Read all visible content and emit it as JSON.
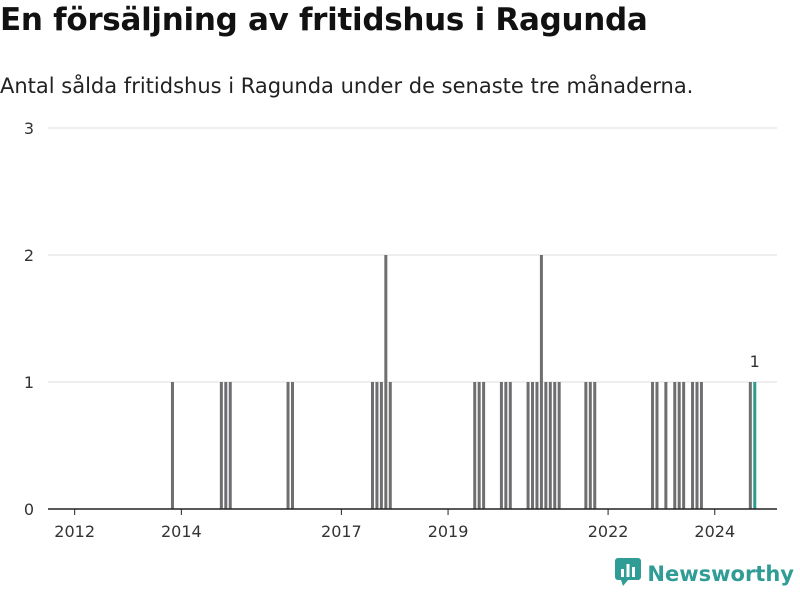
{
  "header": {
    "title": "En försäljning av fritidshus i Ragunda",
    "subtitle": "Antal sålda fritidshus i Ragunda under de senaste tre månaderna."
  },
  "brand": {
    "name": "Newsworthy",
    "icon": "newsworthy-logo-icon",
    "color": "#2f9c95"
  },
  "chart_data": {
    "type": "bar",
    "title": "En försäljning av fritidshus i Ragunda",
    "subtitle": "Antal sålda fritidshus i Ragunda under de senaste tre månaderna.",
    "xlabel": "",
    "ylabel": "",
    "xlim": [
      "2011-07",
      "2025-03"
    ],
    "ylim": [
      0,
      3
    ],
    "yticks": [
      0,
      1,
      2,
      3
    ],
    "xticks": [
      "2012",
      "2014",
      "2017",
      "2019",
      "2022",
      "2024"
    ],
    "grid": true,
    "bar_color": "#6f6f72",
    "highlight_color": "#2a9d8f",
    "highlight_label": "1",
    "months": [
      "2013-11",
      "2014-10",
      "2014-11",
      "2014-12",
      "2016-01",
      "2016-02",
      "2017-08",
      "2017-09",
      "2017-10",
      "2017-11",
      "2017-12",
      "2019-07",
      "2019-08",
      "2019-09",
      "2020-01",
      "2020-02",
      "2020-03",
      "2020-07",
      "2020-08",
      "2020-09",
      "2020-10",
      "2020-11",
      "2020-12",
      "2021-01",
      "2021-02",
      "2021-08",
      "2021-09",
      "2021-10",
      "2022-11",
      "2022-12",
      "2023-02",
      "2023-04",
      "2023-05",
      "2023-06",
      "2023-08",
      "2023-09",
      "2023-10",
      "2024-09",
      "2024-10"
    ],
    "values": [
      1,
      1,
      1,
      1,
      1,
      1,
      1,
      1,
      1,
      2,
      1,
      1,
      1,
      1,
      1,
      1,
      1,
      1,
      1,
      1,
      2,
      1,
      1,
      1,
      1,
      1,
      1,
      1,
      1,
      1,
      1,
      1,
      1,
      1,
      1,
      1,
      1,
      1,
      1
    ],
    "highlight_index": 38
  }
}
